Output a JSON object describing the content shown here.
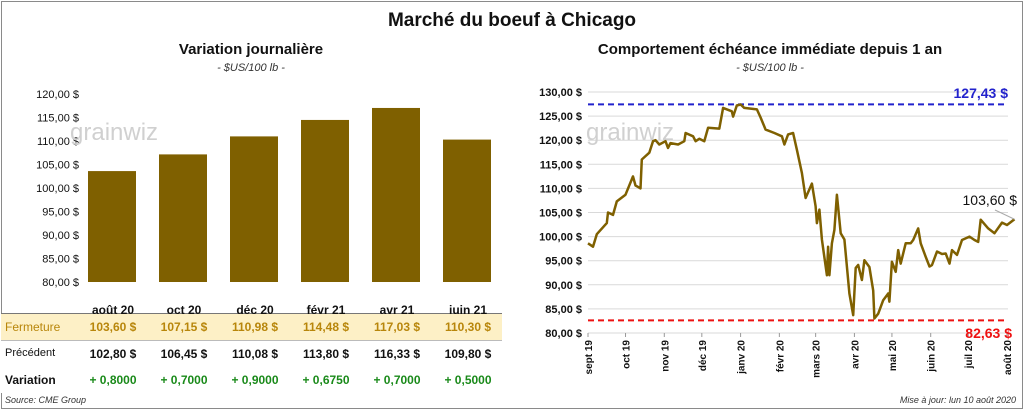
{
  "title": "Marché du boeuf à Chicago",
  "watermark": "grainwiz",
  "left": {
    "subtitle": "Variation journalière",
    "unit": "- $US/100 lb -",
    "table": {
      "columns": [
        "août 20",
        "oct 20",
        "déc 20",
        "févr 21",
        "avr 21",
        "juin 21"
      ],
      "rows": [
        {
          "label": "Fermeture",
          "values": [
            "103,60  $",
            "107,15  $",
            "110,98  $",
            "114,48  $",
            "117,03  $",
            "110,30  $"
          ]
        },
        {
          "label": "Précédent",
          "values": [
            "102,80  $",
            "106,45  $",
            "110,08  $",
            "113,80  $",
            "116,33  $",
            "109,80  $"
          ]
        },
        {
          "label": "Variation",
          "values": [
            "+ 0,8000",
            "+ 0,7000",
            "+ 0,9000",
            "+ 0,6750",
            "+ 0,7000",
            "+ 0,5000"
          ]
        }
      ]
    },
    "source": "Source: CME Group"
  },
  "right": {
    "subtitle": "Comportement  échéance immédiate depuis 1 an",
    "unit": "- $US/100 lb -",
    "updated": "Mise à jour: lun 10 août 2020"
  },
  "colors": {
    "bar": "#7f6000",
    "line": "#7f6000",
    "high": "#2222cc",
    "low": "#ee1111",
    "close_row_bg": "#fdf0c6",
    "close_text": "#b8860b",
    "variation": "#1a8a1a"
  },
  "chart_data": [
    {
      "type": "bar",
      "title": "Variation journalière",
      "categories": [
        "août 20",
        "oct 20",
        "déc 20",
        "févr 21",
        "avr 21",
        "juin 21"
      ],
      "values": [
        103.6,
        107.15,
        110.98,
        114.48,
        117.03,
        110.3
      ],
      "ylim": [
        80,
        120
      ],
      "yticks": [
        "80,00 $",
        "85,00 $",
        "90,00 $",
        "95,00 $",
        "100,00 $",
        "105,00 $",
        "110,00 $",
        "115,00 $",
        "120,00 $"
      ],
      "grid": false
    },
    {
      "type": "line",
      "title": "Comportement  échéance immédiate depuis 1 an",
      "ylim": [
        80,
        130
      ],
      "yticks": [
        "80,00 $",
        "85,00 $",
        "90,00 $",
        "95,00 $",
        "100,00 $",
        "105,00 $",
        "110,00 $",
        "115,00 $",
        "120,00 $",
        "125,00 $",
        "130,00 $"
      ],
      "xticks": [
        "sept 19",
        "oct 19",
        "nov 19",
        "déc 19",
        "janv 20",
        "févr 20",
        "mars 20",
        "avr 20",
        "mai 20",
        "juin 20",
        "juil 20",
        "août 20"
      ],
      "xtick_dates": [
        "2019-09-01",
        "2019-10-01",
        "2019-11-01",
        "2019-12-01",
        "2020-01-01",
        "2020-02-01",
        "2020-03-01",
        "2020-04-01",
        "2020-05-01",
        "2020-06-01",
        "2020-07-01",
        "2020-08-01"
      ],
      "grid": true,
      "high": {
        "value": 127.43,
        "label": "127,43 $"
      },
      "low": {
        "value": 82.63,
        "label": "82,63 $"
      },
      "last_label": "103,60 $",
      "points": [
        [
          "2019-09-01",
          98.6
        ],
        [
          "2019-09-05",
          97.9
        ],
        [
          "2019-09-08",
          100.5
        ],
        [
          "2019-09-16",
          102.8
        ],
        [
          "2019-09-17",
          105.0
        ],
        [
          "2019-09-21",
          104.5
        ],
        [
          "2019-09-24",
          107.3
        ],
        [
          "2019-10-01",
          108.7
        ],
        [
          "2019-10-07",
          112.5
        ],
        [
          "2019-10-09",
          110.6
        ],
        [
          "2019-10-13",
          110.0
        ],
        [
          "2019-10-14",
          116.0
        ],
        [
          "2019-10-20",
          117.4
        ],
        [
          "2019-10-23",
          119.8
        ],
        [
          "2019-10-25",
          120.0
        ],
        [
          "2019-10-28",
          119.1
        ],
        [
          "2019-11-02",
          119.8
        ],
        [
          "2019-11-04",
          118.4
        ],
        [
          "2019-11-06",
          119.4
        ],
        [
          "2019-11-12",
          119.1
        ],
        [
          "2019-11-17",
          119.8
        ],
        [
          "2019-11-18",
          121.5
        ],
        [
          "2019-11-24",
          120.8
        ],
        [
          "2019-11-26",
          119.8
        ],
        [
          "2019-11-29",
          120.3
        ],
        [
          "2019-12-03",
          119.8
        ],
        [
          "2019-12-06",
          122.6
        ],
        [
          "2019-12-15",
          122.4
        ],
        [
          "2019-12-18",
          126.7
        ],
        [
          "2019-12-25",
          126.0
        ],
        [
          "2019-12-26",
          124.9
        ],
        [
          "2019-12-29",
          127.2
        ],
        [
          "2020-01-01",
          127.4
        ],
        [
          "2020-01-04",
          126.7
        ],
        [
          "2020-01-14",
          126.4
        ],
        [
          "2020-01-17",
          124.7
        ],
        [
          "2020-01-21",
          122.2
        ],
        [
          "2020-01-28",
          121.5
        ],
        [
          "2020-02-03",
          120.8
        ],
        [
          "2020-02-05",
          119.1
        ],
        [
          "2020-02-08",
          121.2
        ],
        [
          "2020-02-12",
          121.5
        ],
        [
          "2020-02-15",
          118.0
        ],
        [
          "2020-02-19",
          113.2
        ],
        [
          "2020-02-22",
          108.0
        ],
        [
          "2020-02-27",
          111.0
        ],
        [
          "2020-03-01",
          106.3
        ],
        [
          "2020-03-02",
          102.8
        ],
        [
          "2020-03-04",
          105.6
        ],
        [
          "2020-03-06",
          99.4
        ],
        [
          "2020-03-10",
          92.0
        ],
        [
          "2020-03-11",
          97.9
        ],
        [
          "2020-03-12",
          92.0
        ],
        [
          "2020-03-14",
          98.6
        ],
        [
          "2020-03-16",
          101.4
        ],
        [
          "2020-03-18",
          108.7
        ],
        [
          "2020-03-21",
          100.7
        ],
        [
          "2020-03-24",
          99.4
        ],
        [
          "2020-03-28",
          88.2
        ],
        [
          "2020-03-31",
          83.7
        ],
        [
          "2020-04-02",
          93.5
        ],
        [
          "2020-04-04",
          94.1
        ],
        [
          "2020-04-07",
          91.0
        ],
        [
          "2020-04-09",
          95.1
        ],
        [
          "2020-04-13",
          93.7
        ],
        [
          "2020-04-16",
          88.8
        ],
        [
          "2020-04-17",
          83.0
        ],
        [
          "2020-04-20",
          84.0
        ],
        [
          "2020-04-24",
          86.8
        ],
        [
          "2020-04-28",
          88.2
        ],
        [
          "2020-04-29",
          86.5
        ],
        [
          "2020-05-01",
          94.8
        ],
        [
          "2020-05-04",
          92.7
        ],
        [
          "2020-05-06",
          97.2
        ],
        [
          "2020-05-08",
          94.4
        ],
        [
          "2020-05-12",
          98.6
        ],
        [
          "2020-05-16",
          98.6
        ],
        [
          "2020-05-18",
          99.3
        ],
        [
          "2020-05-22",
          101.7
        ],
        [
          "2020-05-24",
          98.6
        ],
        [
          "2020-05-28",
          95.8
        ],
        [
          "2020-05-31",
          93.8
        ],
        [
          "2020-06-02",
          94.1
        ],
        [
          "2020-06-06",
          96.9
        ],
        [
          "2020-06-10",
          96.4
        ],
        [
          "2020-06-13",
          96.5
        ],
        [
          "2020-06-16",
          94.4
        ],
        [
          "2020-06-18",
          97.2
        ],
        [
          "2020-06-22",
          96.2
        ],
        [
          "2020-06-26",
          99.3
        ],
        [
          "2020-07-02",
          100.0
        ],
        [
          "2020-07-06",
          99.3
        ],
        [
          "2020-07-09",
          98.9
        ],
        [
          "2020-07-11",
          103.5
        ],
        [
          "2020-07-17",
          101.7
        ],
        [
          "2020-07-22",
          100.7
        ],
        [
          "2020-07-28",
          102.9
        ],
        [
          "2020-08-01",
          102.4
        ],
        [
          "2020-08-07",
          103.6
        ]
      ]
    }
  ]
}
